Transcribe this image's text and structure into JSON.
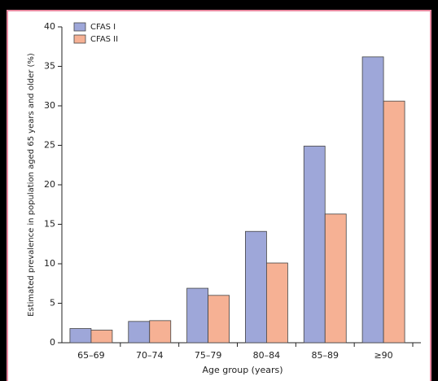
{
  "chart_data": {
    "type": "bar",
    "y_label": "Estimated prevalence in population aged 65 years and older (%)",
    "x_label": "Age group (years)",
    "categories": [
      "65–69",
      "70–74",
      "75–79",
      "80–84",
      "85–89",
      "≥90"
    ],
    "series": [
      {
        "name": "CFAS I",
        "color": "#9ea7d9",
        "values": [
          1.8,
          2.7,
          6.9,
          14.1,
          24.9,
          36.2
        ]
      },
      {
        "name": "CFAS II",
        "color": "#f6b194",
        "values": [
          1.6,
          2.8,
          6.0,
          10.1,
          16.3,
          30.6
        ]
      }
    ],
    "ylim": [
      0,
      40
    ],
    "yticks": [
      0,
      5,
      10,
      15,
      20,
      25,
      30,
      35,
      40
    ],
    "legend": "top-left"
  }
}
